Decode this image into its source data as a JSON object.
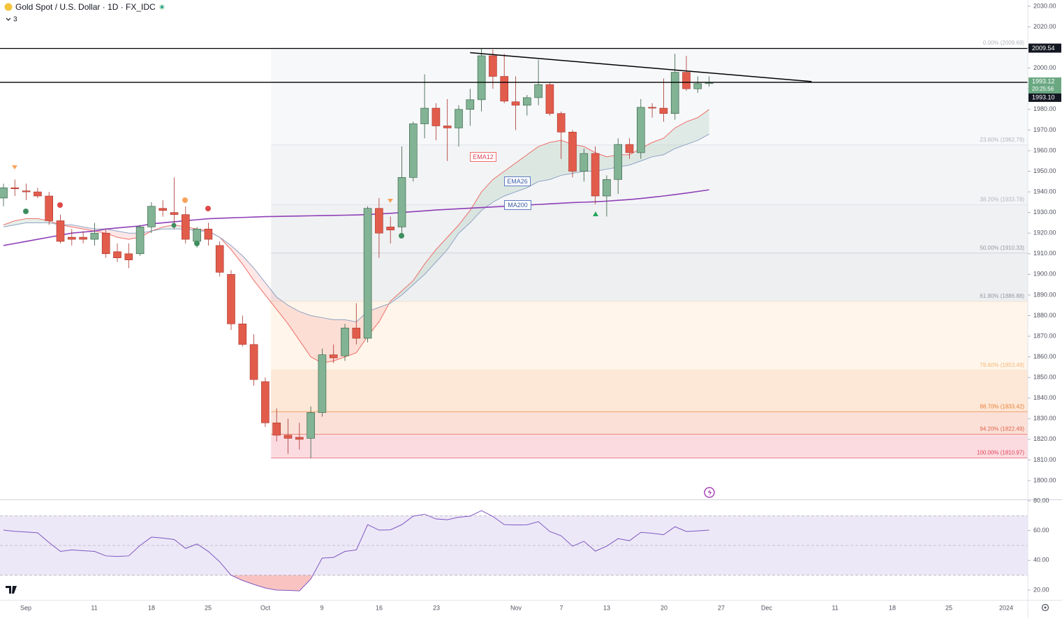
{
  "chart_data": {
    "type": "candlestick",
    "title": "Gold Spot / U.S. Dollar · 1D · FX_IDC",
    "legend_count": "3",
    "candles": {
      "up_color": "#81b394",
      "down_color": "#e25c4c",
      "open": [
        1937,
        1942,
        1940.5,
        1940,
        1938,
        1926,
        1918,
        1918,
        1917,
        1920,
        1911,
        1910,
        1910,
        1923,
        1932,
        1930,
        1929,
        1916,
        1922,
        1914,
        1900,
        1876,
        1866,
        1848,
        1828,
        1822,
        1821,
        1820.5,
        1833,
        1861,
        1860.5,
        1874,
        1869,
        1932,
        1923,
        1923,
        1947,
        1973,
        1980.6,
        1972,
        1971,
        1980,
        1984.7,
        2006,
        1996,
        1983.7,
        1982,
        1985.7,
        1992,
        1978,
        1969,
        1950,
        1958.6,
        1938,
        1946,
        1963,
        1959,
        1981,
        1980.6,
        1978,
        1998,
        1990,
        1992.5
      ],
      "high": [
        1944,
        1946,
        1944,
        1942,
        1940,
        1929,
        1922,
        1921,
        1925,
        1922,
        1915,
        1915,
        1924,
        1935,
        1936,
        1947,
        1933,
        1923,
        1925,
        1916,
        1902,
        1880,
        1871,
        1850,
        1835,
        1830,
        1828,
        1836,
        1864,
        1866,
        1876,
        1886,
        1933,
        1937,
        1928,
        1962,
        1974,
        1997,
        1983,
        1985,
        1982,
        1990,
        2009.5,
        2009,
        2007,
        1996,
        1987,
        2004,
        1993,
        1979,
        1970,
        1961,
        1962,
        1948,
        1966,
        1966,
        1985,
        1983,
        1995,
        2007,
        2006,
        1996,
        1996
      ],
      "low": [
        1933,
        1938,
        1936,
        1937,
        1924,
        1915,
        1914,
        1915,
        1914,
        1908,
        1906,
        1903,
        1909,
        1920,
        1928,
        1922,
        1915,
        1913,
        1914,
        1899,
        1873,
        1865,
        1846,
        1826,
        1819,
        1813,
        1815,
        1810.97,
        1831,
        1857,
        1858,
        1866,
        1867,
        1908,
        1915,
        1920,
        1945,
        1966,
        1965,
        1955,
        1962,
        1972,
        1979,
        1990,
        1983,
        1970,
        1977,
        1982,
        1977,
        1956,
        1947,
        1945,
        1934,
        1928,
        1939,
        1956,
        1956,
        1976,
        1974,
        1975,
        1989,
        1988,
        1991
      ],
      "close": [
        1942,
        1941.5,
        1940,
        1938,
        1926,
        1916,
        1917,
        1917,
        1920,
        1910,
        1908,
        1907,
        1923,
        1933,
        1931,
        1929,
        1917,
        1922,
        1917,
        1901,
        1876,
        1866,
        1849,
        1828,
        1822,
        1820.5,
        1820,
        1833,
        1861,
        1859.5,
        1874,
        1869,
        1932,
        1920,
        1921.5,
        1947,
        1973,
        1980.6,
        1972,
        1971,
        1980,
        1984.7,
        2006,
        1996,
        1984,
        1982,
        1985.7,
        1992,
        1978,
        1969,
        1950,
        1958.6,
        1938,
        1946,
        1963,
        1959,
        1981,
        1980.6,
        1978,
        1998,
        1990,
        1992.5,
        1993.12
      ]
    },
    "series": [
      {
        "name": "EMA12",
        "color": "#f0706a",
        "values": [
          1924,
          1926,
          1927,
          1927,
          1926,
          1924,
          1923,
          1922,
          1921,
          1920,
          1918,
          1917,
          1918,
          1921,
          1923,
          1924,
          1923,
          1922,
          1921,
          1918,
          1912,
          1905,
          1897,
          1890,
          1883,
          1876,
          1868,
          1860,
          1857,
          1858,
          1860,
          1862,
          1870,
          1877,
          1887,
          1892,
          1897,
          1905,
          1912,
          1918,
          1924,
          1931,
          1940,
          1946,
          1950,
          1954,
          1958,
          1962,
          1964,
          1965,
          1963,
          1962,
          1959,
          1957,
          1958,
          1958,
          1961,
          1964,
          1966,
          1971,
          1974,
          1976,
          1980
        ]
      },
      {
        "name": "EMA26",
        "color": "#8fa3c4",
        "values": [
          1923,
          1924,
          1925,
          1925,
          1925,
          1924,
          1924,
          1923,
          1922,
          1922,
          1921,
          1920,
          1920,
          1921,
          1922,
          1922,
          1922,
          1921,
          1921,
          1918,
          1914,
          1909,
          1903,
          1896,
          1889,
          1885,
          1882,
          1880,
          1879,
          1878,
          1878,
          1877,
          1882,
          1884,
          1886,
          1890,
          1895,
          1900,
          1906,
          1912,
          1920,
          1925,
          1931,
          1935,
          1938,
          1940,
          1942,
          1945,
          1946,
          1948,
          1949,
          1950,
          1950,
          1951,
          1952,
          1953,
          1955,
          1957,
          1958,
          1961,
          1963,
          1965,
          1968
        ]
      },
      {
        "name": "MA200",
        "color": "#8e3fb7",
        "values": [
          1914,
          1915,
          1916,
          1917,
          1918,
          1919,
          1920,
          1920.5,
          1921,
          1922,
          1922.5,
          1923,
          1923.5,
          1924.5,
          1925,
          1925.5,
          1926,
          1926.5,
          1927,
          1927.2,
          1927.4,
          1927.6,
          1927.8,
          1928,
          1928.1,
          1928.2,
          1928.3,
          1928.4,
          1928.5,
          1928.6,
          1928.7,
          1928.8,
          1929,
          1929.3,
          1929.6,
          1930,
          1930.4,
          1930.8,
          1931.2,
          1931.5,
          1931.8,
          1932.1,
          1932.4,
          1932.7,
          1933,
          1933.3,
          1933.6,
          1933.9,
          1934.2,
          1934.5,
          1934.8,
          1935,
          1935.2,
          1935.5,
          1935.9,
          1936.3,
          1936.8,
          1937.4,
          1938,
          1938.7,
          1939.4,
          1940.2,
          1941
        ]
      }
    ],
    "cloud_colors": {
      "up": "rgba(129,179,148,0.2)",
      "down": "rgba(242,120,120,0.18)"
    },
    "ylim": [
      1790.87,
      2033.04
    ],
    "yticks": [
      {
        "value": 2030,
        "label": "2030.00"
      },
      {
        "value": 2020,
        "label": "2020.00"
      },
      {
        "value": 2010,
        "label": "2010.00"
      },
      {
        "value": 2000,
        "label": "2000.00"
      },
      {
        "value": 1990,
        "label": "1990.00"
      },
      {
        "value": 1980,
        "label": "1980.00"
      },
      {
        "value": 1970,
        "label": "1970.00"
      },
      {
        "value": 1960,
        "label": "1960.00"
      },
      {
        "value": 1950,
        "label": "1950.00"
      },
      {
        "value": 1940,
        "label": "1940.00"
      },
      {
        "value": 1930,
        "label": "1930.00"
      },
      {
        "value": 1920,
        "label": "1920.00"
      },
      {
        "value": 1910,
        "label": "1910.00"
      },
      {
        "value": 1900,
        "label": "1900.00"
      },
      {
        "value": 1890,
        "label": "1890.00"
      },
      {
        "value": 1880,
        "label": "1880.00"
      },
      {
        "value": 1870,
        "label": "1870.00"
      },
      {
        "value": 1860,
        "label": "1860.00"
      },
      {
        "value": 1850,
        "label": "1850.00"
      },
      {
        "value": 1840,
        "label": "1840.00"
      },
      {
        "value": 1830,
        "label": "1830.00"
      },
      {
        "value": 1820,
        "label": "1820.00"
      },
      {
        "value": 1810,
        "label": "1810.00"
      },
      {
        "value": 1800,
        "label": "1800.00"
      }
    ],
    "xticks": [
      "Sep",
      "11",
      "18",
      "25",
      "Oct",
      "9",
      "16",
      "23",
      "Nov",
      "7",
      "13",
      "20",
      "27",
      "Dec",
      "11",
      "18",
      "25",
      "2024"
    ],
    "fib": [
      {
        "value": 2009.69,
        "label": "0.00% (2009.69)",
        "color": "#b2b5be",
        "line": "#e0e3eb",
        "fill": "#f7f8fa"
      },
      {
        "value": 1962.79,
        "label": "23.60% (1962.79)",
        "color": "#b2b5be",
        "line": "#e0e3eb",
        "fill": "#f3f4f6"
      },
      {
        "value": 1933.78,
        "label": "38.20% (1933.78)",
        "color": "#b2b5be",
        "line": "#e0e3eb",
        "fill": "#f0f1f3"
      },
      {
        "value": 1910.33,
        "label": "50.00% (1910.33)",
        "color": "#9598a1",
        "line": "#d1d4dc",
        "fill": "#eeeff1"
      },
      {
        "value": 1886.88,
        "label": "61.80% (1886.88)",
        "color": "#9598a1",
        "line": "#f3e0cc",
        "fill": "#fff5ea"
      },
      {
        "value": 1853.49,
        "label": "78.60% (1853.49)",
        "color": "#f5b97a",
        "line": "#fbe1c7",
        "fill": "#fde7d6"
      },
      {
        "value": 1833.42,
        "label": "88.70% (1833.42)",
        "color": "#e8803a",
        "line": "#f3a36b",
        "fill": "#fbe0d8"
      },
      {
        "value": 1822.49,
        "label": "94.20% (1822.49)",
        "color": "#e0654a",
        "line": "#ec8b74",
        "fill": "#fcdbe0"
      },
      {
        "value": 1810.97,
        "label": "100.00% (1810.97)",
        "color": "#e0455a",
        "line": "#ec7f8c",
        "fill": "none"
      }
    ],
    "price_lines": [
      2009.54,
      {
        "value": 1993.1,
        "label": "1993.10"
      }
    ],
    "last_price": {
      "value": 1993.12,
      "countdown": "20:25:56"
    },
    "trendline": {
      "values": [
        2007.5,
        1993.5
      ]
    },
    "rsi": {
      "color": "#7e57c2",
      "values": [
        60.3,
        59.5,
        59,
        58.5,
        52,
        46,
        47,
        46.5,
        46,
        43,
        42.6,
        43,
        50,
        55.6,
        55,
        54,
        48,
        51,
        46,
        39,
        30,
        26.5,
        23.8,
        21.4,
        20,
        19.8,
        19.5,
        27.4,
        41.5,
        42,
        46,
        47,
        64,
        60.3,
        60.5,
        64,
        69.7,
        71,
        67.8,
        67.3,
        69,
        69.7,
        73.4,
        69.5,
        64,
        63.8,
        63.9,
        66,
        59.4,
        56.5,
        49.5,
        52.8,
        46.2,
        49.5,
        54.6,
        53.2,
        58.8,
        58.2,
        57.2,
        62.6,
        59.4,
        59.8,
        60.3
      ],
      "ylim": [
        13.44,
        80.94
      ],
      "yticks": [
        {
          "value": 80,
          "label": "80.00"
        },
        {
          "value": 60,
          "label": "60.00"
        },
        {
          "value": 40,
          "label": "40.00"
        },
        {
          "value": 20,
          "label": "20.00"
        }
      ],
      "bands": [
        70,
        50,
        30
      ]
    }
  }
}
